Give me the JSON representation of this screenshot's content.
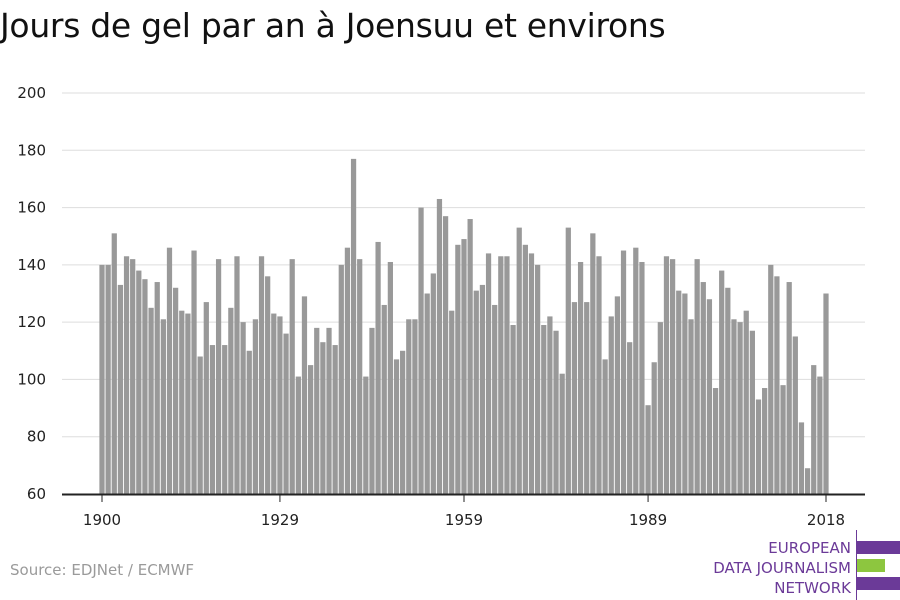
{
  "title": "Jours de gel par an à Joensuu et environs",
  "source": "Source: EDJNet / ECMWF",
  "logo": {
    "lines": [
      "EUROPEAN",
      "DATA JOURNALISM",
      "NETWORK"
    ],
    "colors": {
      "purple": "#6b3a98",
      "green": "#8dc63f"
    }
  },
  "colors": {
    "bar": "#999999",
    "grid": "#dddddd",
    "axis": "#222222",
    "text": "#222222"
  },
  "chart_data": {
    "type": "bar",
    "title": "Jours de gel par an à Joensuu et environs",
    "xlabel": "",
    "ylabel": "",
    "ylim": [
      60,
      200
    ],
    "yticks": [
      60,
      80,
      100,
      120,
      140,
      160,
      180,
      200
    ],
    "xticks": [
      "1900",
      "1929",
      "1959",
      "1989",
      "2018"
    ],
    "grid": true,
    "x": [
      1900,
      1901,
      1902,
      1903,
      1904,
      1905,
      1906,
      1907,
      1908,
      1909,
      1910,
      1911,
      1912,
      1913,
      1914,
      1915,
      1916,
      1917,
      1918,
      1919,
      1920,
      1921,
      1922,
      1923,
      1924,
      1925,
      1926,
      1927,
      1928,
      1929,
      1930,
      1931,
      1932,
      1933,
      1934,
      1935,
      1936,
      1937,
      1938,
      1939,
      1940,
      1941,
      1942,
      1943,
      1944,
      1945,
      1946,
      1947,
      1948,
      1949,
      1950,
      1951,
      1952,
      1953,
      1954,
      1955,
      1956,
      1957,
      1958,
      1959,
      1960,
      1961,
      1962,
      1963,
      1964,
      1965,
      1966,
      1967,
      1968,
      1969,
      1970,
      1971,
      1972,
      1973,
      1974,
      1975,
      1976,
      1977,
      1978,
      1979,
      1980,
      1981,
      1982,
      1983,
      1984,
      1985,
      1986,
      1987,
      1988,
      1989,
      1990,
      1991,
      1992,
      1993,
      1994,
      1995,
      1996,
      1997,
      1998,
      1999,
      2000,
      2001,
      2002,
      2003,
      2004,
      2005,
      2006,
      2007,
      2008,
      2009,
      2010,
      2011,
      2012,
      2013,
      2014,
      2015,
      2016,
      2017,
      2018
    ],
    "values": [
      140,
      140,
      151,
      133,
      143,
      142,
      138,
      135,
      125,
      134,
      121,
      146,
      132,
      124,
      123,
      145,
      108,
      127,
      112,
      142,
      112,
      125,
      143,
      120,
      110,
      121,
      143,
      136,
      123,
      122,
      116,
      142,
      101,
      129,
      105,
      118,
      113,
      118,
      112,
      140,
      146,
      177,
      142,
      101,
      118,
      148,
      126,
      141,
      107,
      110,
      121,
      121,
      160,
      130,
      137,
      163,
      157,
      124,
      147,
      149,
      156,
      131,
      133,
      144,
      126,
      143,
      143,
      119,
      153,
      147,
      144,
      140,
      119,
      122,
      117,
      102,
      153,
      127,
      141,
      127,
      151,
      143,
      107,
      122,
      129,
      145,
      113,
      146,
      141,
      91,
      106,
      120,
      143,
      142,
      131,
      130,
      121,
      142,
      134,
      128,
      97,
      138,
      132,
      121,
      120,
      124,
      117,
      93,
      97,
      140,
      136,
      98,
      134,
      115,
      85,
      69,
      105,
      101,
      130
    ]
  }
}
